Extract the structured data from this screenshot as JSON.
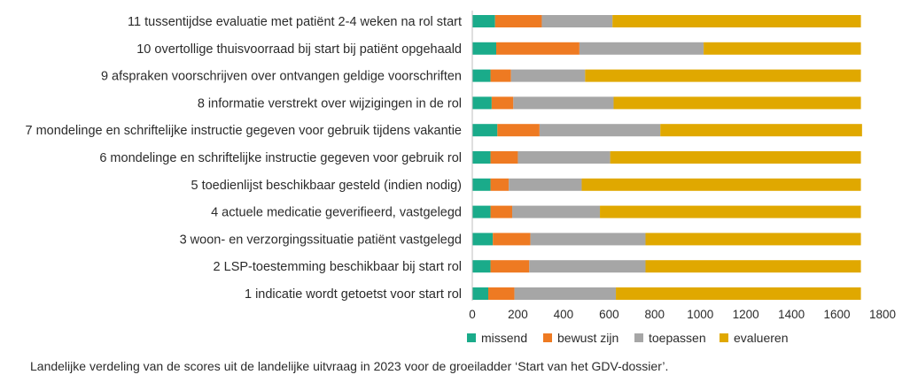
{
  "caption": "Landelijke verdeling van de scores uit de landelijke uitvraag in 2023 voor de groeiladder ‘Start van het GDV-dossier’.",
  "chart_data": {
    "type": "bar",
    "orientation": "horizontal",
    "stacked": true,
    "categories": [
      "11 tussentijdse evaluatie met patiënt 2-4 weken na rol start",
      "10 overtollige thuisvoorraad bij start bij patiënt opgehaald",
      "9 afspraken voorschrijven over ontvangen geldige voorschriften",
      "8 informatie verstrekt over wijzigingen in de rol",
      "7 mondelinge en schriftelijke instructie gegeven voor gebruik tijdens vakantie",
      "6 mondelinge en schriftelijke instructie gegeven voor gebruik rol",
      "5 toedienlijst beschikbaar gesteld (indien nodig)",
      "4 actuele medicatie geverifieerd, vastgelegd",
      "3 woon- en verzorgingssituatie patiënt vastgelegd",
      "2 LSP-toestemming beschikbaar bij start rol",
      "1 indicatie wordt getoetst voor start rol"
    ],
    "series": [
      {
        "name": "missend",
        "color": "#1aab8a",
        "values": [
          100,
          105,
          80,
          85,
          110,
          80,
          80,
          80,
          90,
          80,
          70
        ]
      },
      {
        "name": "bewust zijn",
        "color": "#ee7a22",
        "values": [
          205,
          365,
          90,
          95,
          185,
          120,
          80,
          95,
          165,
          170,
          115
        ]
      },
      {
        "name": "toepassen",
        "color": "#a6a6a6",
        "values": [
          310,
          545,
          325,
          440,
          530,
          405,
          320,
          385,
          505,
          510,
          445
        ]
      },
      {
        "name": "evalueren",
        "color": "#e0a800",
        "values": [
          1090,
          690,
          1210,
          1085,
          885,
          1100,
          1225,
          1145,
          945,
          945,
          1075
        ]
      }
    ],
    "x_ticks": [
      "0",
      "200",
      "400",
      "600",
      "800",
      "1000",
      "1200",
      "1400",
      "1600",
      "1800"
    ],
    "xlim": [
      0,
      1800
    ],
    "grid": false,
    "legend_position": "bottom"
  }
}
